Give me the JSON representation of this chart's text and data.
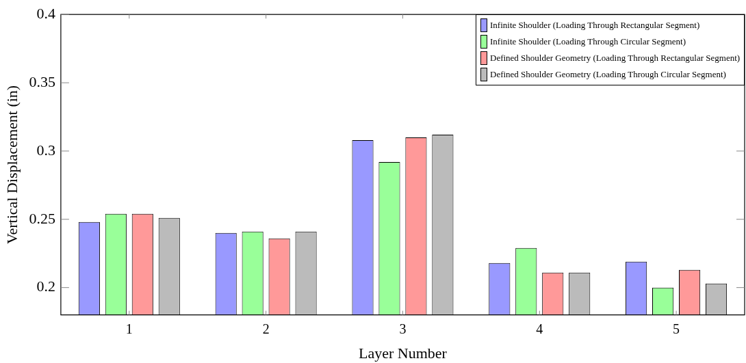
{
  "chart_data": {
    "type": "bar",
    "xlabel": "Layer Number",
    "ylabel": "Vertical Displacement (in)",
    "categories": [
      "1",
      "2",
      "3",
      "4",
      "5"
    ],
    "series": [
      {
        "name": "Infinite Shoulder (Loading Through Rectangular Segment)",
        "color": "#9999ff",
        "values": [
          0.248,
          0.24,
          0.308,
          0.218,
          0.219
        ]
      },
      {
        "name": "Infinite Shoulder (Loading Through Circular Segment)",
        "color": "#99ff99",
        "values": [
          0.254,
          0.241,
          0.292,
          0.229,
          0.2
        ]
      },
      {
        "name": "Defined Shoulder Geometry (Loading Through Rectangular Segment)",
        "color": "#ff9999",
        "values": [
          0.254,
          0.236,
          0.31,
          0.211,
          0.213
        ]
      },
      {
        "name": "Defined Shoulder Geometry (Loading Through Circular Segment)",
        "color": "#bbbbbb",
        "values": [
          0.251,
          0.241,
          0.312,
          0.211,
          0.203
        ]
      }
    ],
    "ylim": [
      0.18,
      0.4
    ],
    "yticks": [
      0.2,
      0.25,
      0.3,
      0.35,
      0.4
    ],
    "grid": false,
    "legend": "top right"
  }
}
